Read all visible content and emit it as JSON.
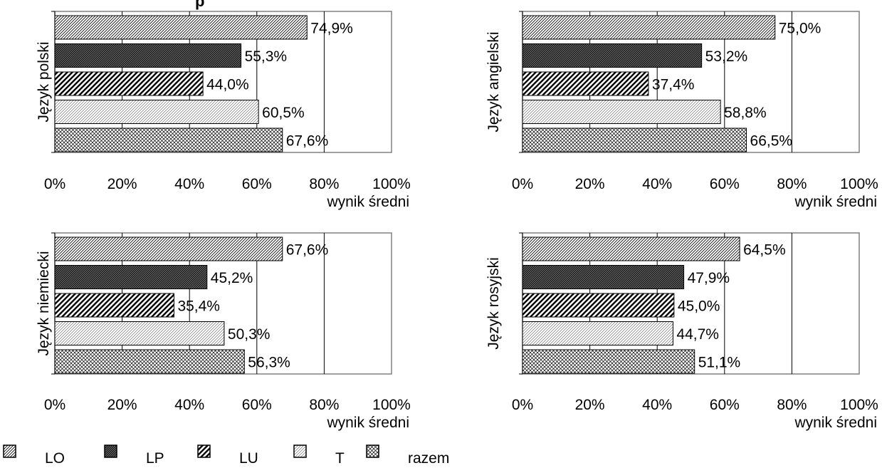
{
  "title_fragment": "p",
  "chart_data": [
    {
      "type": "bar",
      "orientation": "horizontal",
      "ylabel": "Język polski",
      "xlabel": "wynik średni",
      "xlim": [
        0,
        100
      ],
      "x_ticks": [
        "0%",
        "20%",
        "40%",
        "60%",
        "80%",
        "100%"
      ],
      "categories": [
        "LO",
        "LP",
        "LU",
        "T",
        "razem"
      ],
      "values": [
        74.9,
        55.3,
        44.0,
        60.5,
        67.6
      ],
      "value_labels": [
        "74,9%",
        "55,3%",
        "44,0%",
        "60,5%",
        "67,6%"
      ]
    },
    {
      "type": "bar",
      "orientation": "horizontal",
      "ylabel": "Język angielski",
      "xlabel": "wynik średni",
      "xlim": [
        0,
        100
      ],
      "x_ticks": [
        "0%",
        "20%",
        "40%",
        "60%",
        "80%",
        "100%"
      ],
      "categories": [
        "LO",
        "LP",
        "LU",
        "T",
        "razem"
      ],
      "values": [
        75.0,
        53.2,
        37.4,
        58.8,
        66.5
      ],
      "value_labels": [
        "75,0%",
        "53,2%",
        "37,4%",
        "58,8%",
        "66,5%"
      ]
    },
    {
      "type": "bar",
      "orientation": "horizontal",
      "ylabel": "Język niemiecki",
      "xlabel": "wynik średni",
      "xlim": [
        0,
        100
      ],
      "x_ticks": [
        "0%",
        "20%",
        "40%",
        "60%",
        "80%",
        "100%"
      ],
      "categories": [
        "LO",
        "LP",
        "LU",
        "T",
        "razem"
      ],
      "values": [
        67.6,
        45.2,
        35.4,
        50.3,
        56.3
      ],
      "value_labels": [
        "67,6%",
        "45,2%",
        "35,4%",
        "50,3%",
        "56,3%"
      ]
    },
    {
      "type": "bar",
      "orientation": "horizontal",
      "ylabel": "Język rosyjski",
      "xlabel": "wynik średni",
      "xlim": [
        0,
        100
      ],
      "x_ticks": [
        "0%",
        "20%",
        "40%",
        "60%",
        "80%",
        "100%"
      ],
      "categories": [
        "LO",
        "LP",
        "LU",
        "T",
        "razem"
      ],
      "values": [
        64.5,
        47.9,
        45.0,
        44.7,
        51.1
      ],
      "value_labels": [
        "64,5%",
        "47,9%",
        "45,0%",
        "44,7%",
        "51,1%"
      ]
    }
  ],
  "legend": {
    "position": "bottom",
    "items": [
      {
        "label": "LO",
        "pattern": "diag-fine"
      },
      {
        "label": "LP",
        "pattern": "diag-dense"
      },
      {
        "label": "LU",
        "pattern": "diag-bold"
      },
      {
        "label": "T",
        "pattern": "diag-light"
      },
      {
        "label": "razem",
        "pattern": "crosshatch"
      }
    ]
  }
}
